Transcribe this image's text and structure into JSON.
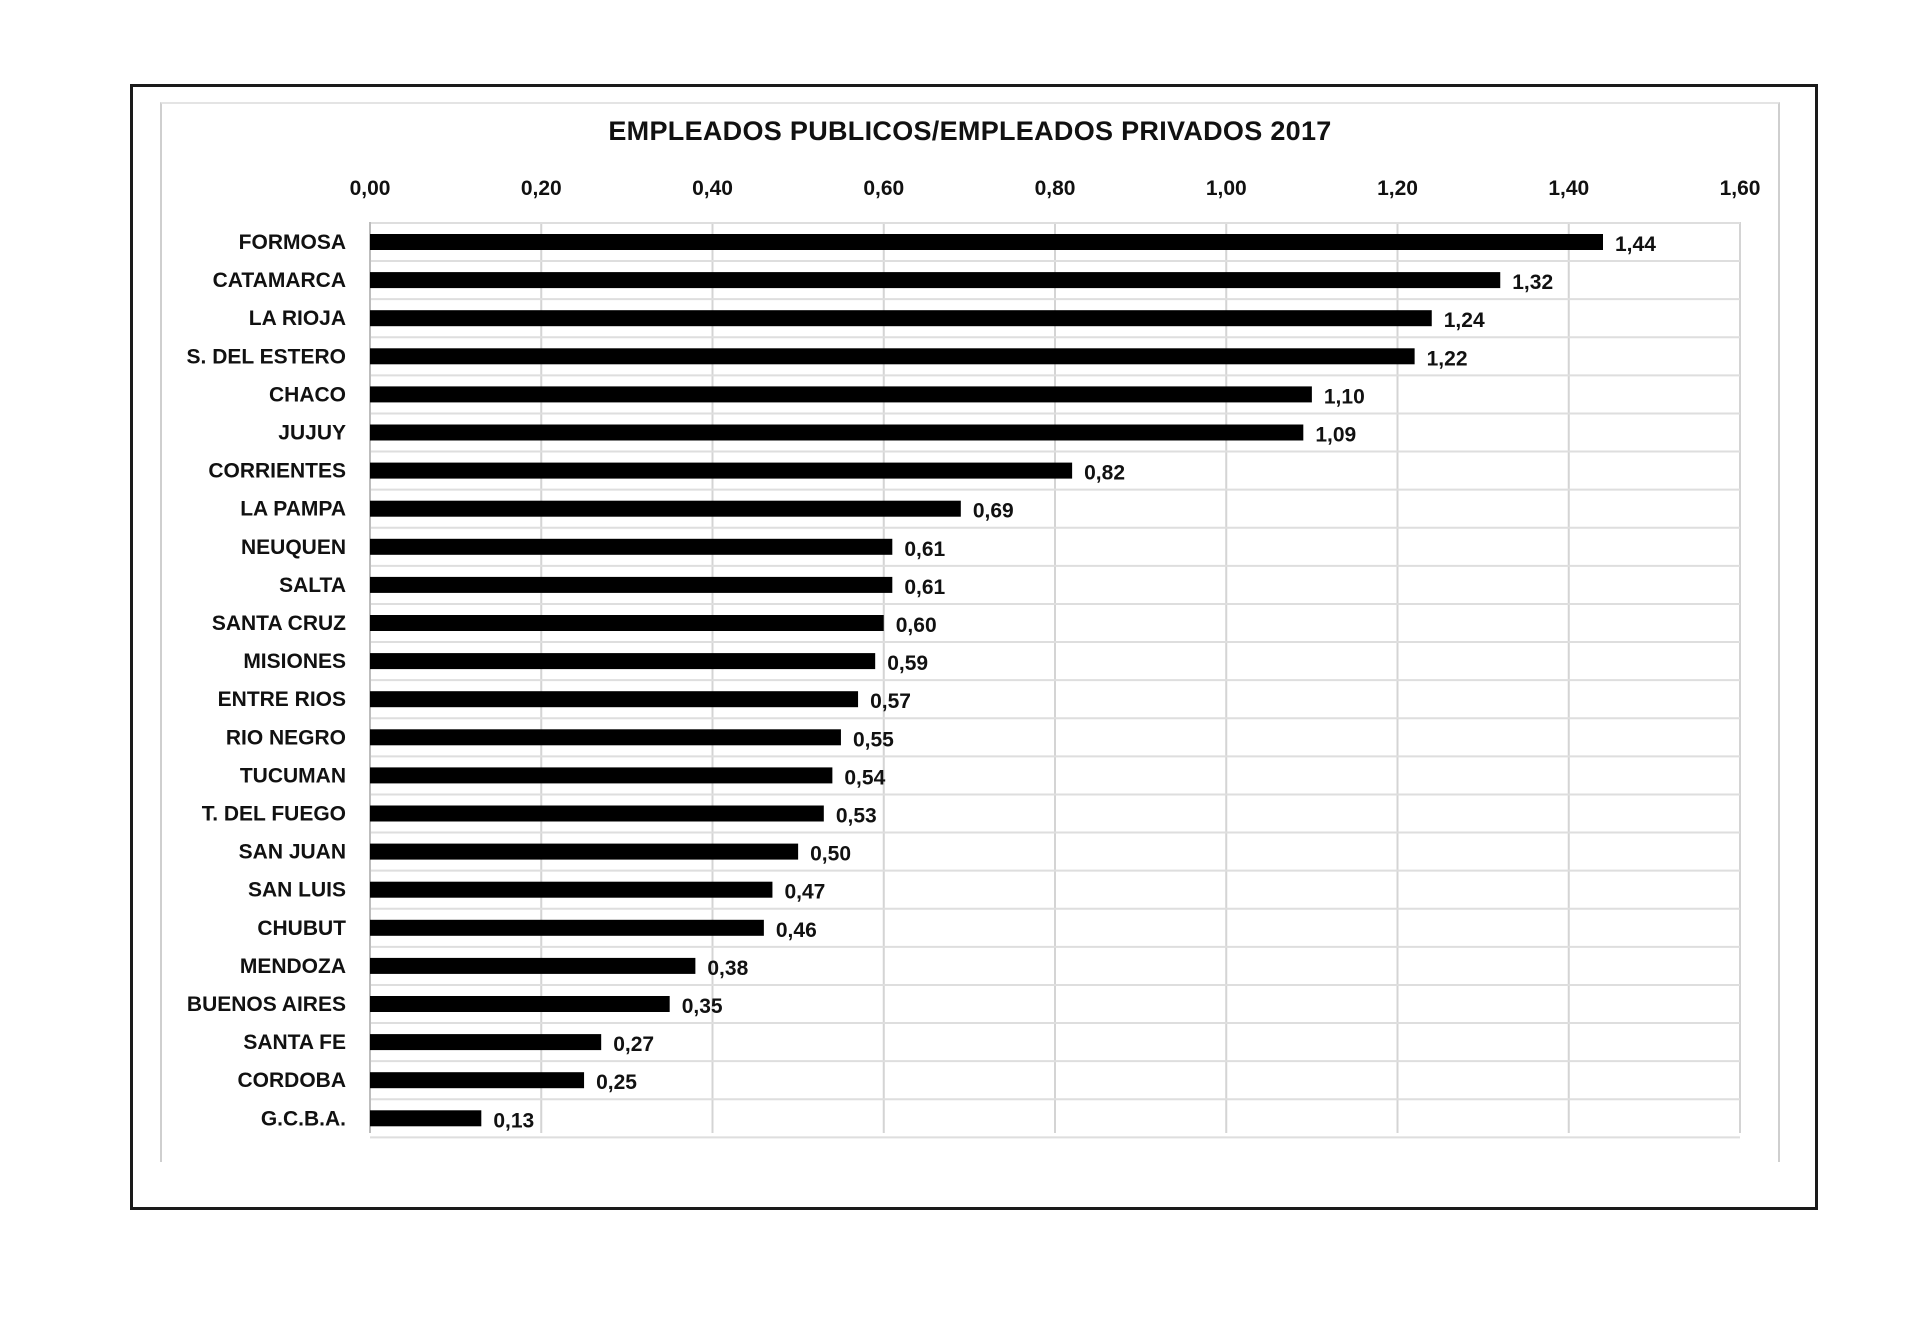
{
  "chart_data": {
    "type": "bar",
    "orientation": "horizontal",
    "title": "EMPLEADOS PUBLICOS/EMPLEADOS PRIVADOS 2017",
    "xlabel": "",
    "ylabel": "",
    "xlim": [
      0,
      1.6
    ],
    "x_ticks": [
      "0,00",
      "0,20",
      "0,40",
      "0,60",
      "0,80",
      "1,00",
      "1,20",
      "1,40",
      "1,60"
    ],
    "x_tick_values": [
      0,
      0.2,
      0.4,
      0.6,
      0.8,
      1.0,
      1.2,
      1.4,
      1.6
    ],
    "x_axis_position": "top",
    "grid": true,
    "bar_color": "#000000",
    "categories": [
      "FORMOSA",
      "CATAMARCA",
      "LA RIOJA",
      "S. DEL ESTERO",
      "CHACO",
      "JUJUY",
      "CORRIENTES",
      "LA PAMPA",
      "NEUQUEN",
      "SALTA",
      "SANTA CRUZ",
      "MISIONES",
      "ENTRE RIOS",
      "RIO NEGRO",
      "TUCUMAN",
      "T. DEL FUEGO",
      "SAN JUAN",
      "SAN LUIS",
      "CHUBUT",
      "MENDOZA",
      "BUENOS AIRES",
      "SANTA FE",
      "CORDOBA",
      "G.C.B.A."
    ],
    "values": [
      1.44,
      1.32,
      1.24,
      1.22,
      1.1,
      1.09,
      0.82,
      0.69,
      0.61,
      0.61,
      0.6,
      0.59,
      0.57,
      0.55,
      0.54,
      0.53,
      0.5,
      0.47,
      0.46,
      0.38,
      0.35,
      0.27,
      0.25,
      0.13
    ],
    "value_labels": [
      "1,44",
      "1,32",
      "1,24",
      "1,22",
      "1,10",
      "1,09",
      "0,82",
      "0,69",
      "0,61",
      "0,61",
      "0,60",
      "0,59",
      "0,57",
      "0,55",
      "0,54",
      "0,53",
      "0,50",
      "0,47",
      "0,46",
      "0,38",
      "0,35",
      "0,27",
      "0,25",
      "0,13"
    ]
  }
}
